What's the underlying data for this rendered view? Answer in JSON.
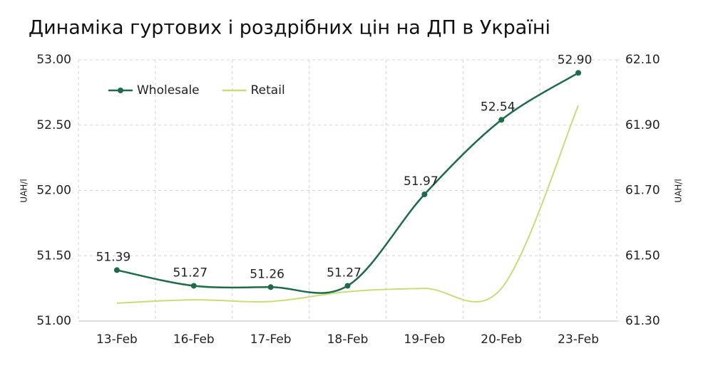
{
  "chart_data": {
    "type": "line",
    "title": "Динаміка гуртових і роздрібних цін на ДП в Україні",
    "y_label": "UAH/l",
    "y2_label": "UAH/l",
    "categories": [
      "13-Feb",
      "16-Feb",
      "17-Feb",
      "18-Feb",
      "19-Feb",
      "20-Feb",
      "23-Feb"
    ],
    "series": [
      {
        "name": "Wholesale",
        "color": "#1e6b4a",
        "markers": true,
        "values": [
          51.39,
          51.27,
          51.26,
          51.27,
          51.97,
          52.54,
          52.9
        ],
        "value_labels": [
          "51.39",
          "51.27",
          "51.26",
          "51.27",
          "51.97",
          "52.54",
          "52.90"
        ]
      },
      {
        "name": "Retail",
        "color": "#c8dd7a",
        "axis": "y2",
        "markers": false,
        "values": [
          61.355,
          61.365,
          61.36,
          61.39,
          61.4,
          61.4,
          61.96
        ]
      }
    ],
    "ylim": [
      51,
      53
    ],
    "yticks": [
      {
        "value": 51,
        "label": "51.00"
      },
      {
        "value": 51.5,
        "label": "51.50"
      },
      {
        "value": 52,
        "label": "52.00"
      },
      {
        "value": 52.5,
        "label": "52.50"
      },
      {
        "value": 53,
        "label": "53.00"
      }
    ],
    "y2lim": [
      61.3,
      62.1
    ],
    "y2ticks": [
      {
        "value": 61.3,
        "label": "61.30"
      },
      {
        "value": 61.5,
        "label": "61.50"
      },
      {
        "value": 61.7,
        "label": "61.70"
      },
      {
        "value": 61.9,
        "label": "61.90"
      },
      {
        "value": 62.1,
        "label": "62.10"
      }
    ],
    "grid": true,
    "legend": "top-left"
  }
}
